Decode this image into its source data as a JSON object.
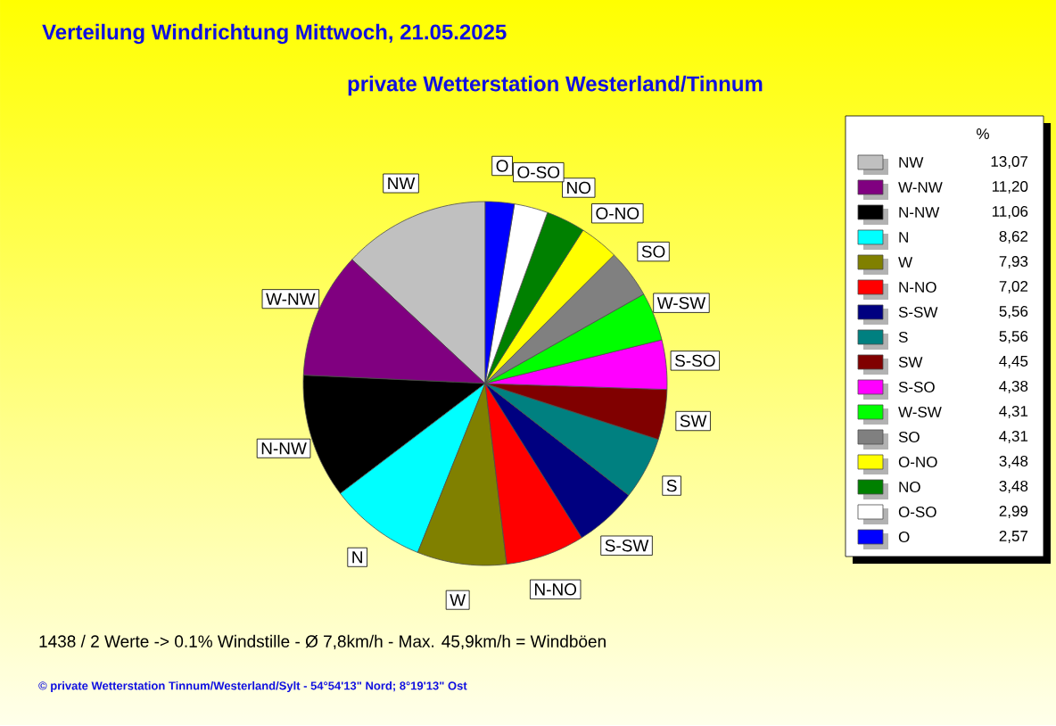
{
  "chart_data": {
    "type": "pie",
    "title": "Verteilung Windrichtung   Mittwoch, 21.05.2025",
    "subtitle": "private Wetterstation Westerland/Tinnum",
    "legend_title": "%",
    "legend": "right",
    "categories": [
      "NW",
      "W-NW",
      "N-NW",
      "N",
      "W",
      "N-NO",
      "S-SW",
      "S",
      "SW",
      "S-SO",
      "W-SW",
      "SO",
      "O-NO",
      "NO",
      "O-SO",
      "O"
    ],
    "values": [
      13.07,
      11.2,
      11.06,
      8.62,
      7.93,
      7.02,
      5.56,
      5.56,
      4.45,
      4.38,
      4.31,
      4.31,
      3.48,
      3.48,
      2.99,
      2.57
    ],
    "value_labels": [
      "13,07",
      "11,20",
      "11,06",
      "8,62",
      "7,93",
      "7,02",
      "5,56",
      "5,56",
      "4,45",
      "4,38",
      "4,31",
      "4,31",
      "3,48",
      "3,48",
      "2,99",
      "2,57"
    ],
    "colors": [
      "#c0c0c0",
      "#800080",
      "#000000",
      "#00ffff",
      "#808000",
      "#ff0000",
      "#000080",
      "#008080",
      "#800000",
      "#ff00ff",
      "#00ff00",
      "#808080",
      "#ffff00",
      "#008000",
      "#ffffff",
      "#0000ff"
    ],
    "annotations": [
      "1438 / 2 Werte  -> 0.1% Windstille   -   Ø 7,8km/h  -  Max. 45,9km/h = Windböen",
      "© private Wetterstation Tinnum/Westerland/Sylt   -   54°54'13\" Nord; 8°19'13\" Ost"
    ]
  }
}
